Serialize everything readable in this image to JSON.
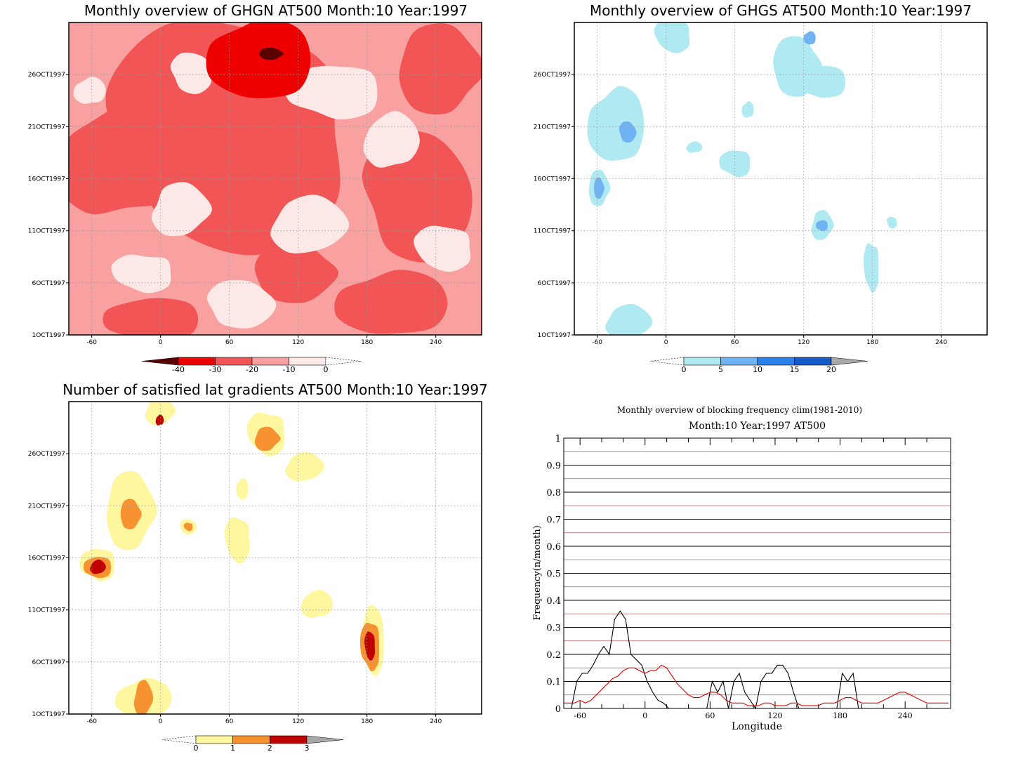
{
  "chart_data": [
    {
      "type": "heatmap",
      "title": "Monthly overview of GHGN AT500 Month:10 Year:1997",
      "x_ticks": [
        -60,
        0,
        60,
        120,
        180,
        240
      ],
      "y_ticks": [
        "1OCT1997",
        "6OCT1997",
        "11OCT1997",
        "16OCT1997",
        "21OCT1997",
        "26OCT1997"
      ],
      "xlim": [
        -80,
        280
      ],
      "ylim_days": [
        1,
        31
      ],
      "colorbar": {
        "ticks": [
          "-40",
          "-30",
          "-20",
          "-10",
          "0"
        ],
        "colors": [
          "#5a0000",
          "#ee0000",
          "#f25555",
          "#f9a0a0",
          "#fde8e8"
        ]
      }
    },
    {
      "type": "heatmap",
      "title": "Monthly overview of GHGS AT500 Month:10 Year:1997",
      "x_ticks": [
        -60,
        0,
        60,
        120,
        180,
        240
      ],
      "y_ticks": [
        "1OCT1997",
        "6OCT1997",
        "11OCT1997",
        "16OCT1997",
        "21OCT1997",
        "26OCT1997"
      ],
      "xlim": [
        -80,
        280
      ],
      "ylim_days": [
        1,
        31
      ],
      "colorbar": {
        "ticks": [
          "0",
          "5",
          "10",
          "15",
          "20"
        ],
        "colors": [
          "#afeaf3",
          "#6fb3f3",
          "#2a82ea",
          "#1659c8",
          "#a8a8a8"
        ]
      }
    },
    {
      "type": "heatmap",
      "title": "Number of satisfied lat gradients AT500 Month:10 Year:1997",
      "x_ticks": [
        -60,
        0,
        60,
        120,
        180,
        240
      ],
      "y_ticks": [
        "1OCT1997",
        "6OCT1997",
        "11OCT1997",
        "16OCT1997",
        "21OCT1997",
        "26OCT1997"
      ],
      "xlim": [
        -80,
        280
      ],
      "ylim_days": [
        1,
        31
      ],
      "colorbar": {
        "ticks": [
          "0",
          "1",
          "2",
          "3"
        ],
        "colors": [
          "#fff6a0",
          "#f79230",
          "#c00000",
          "#a8a8a8"
        ]
      }
    },
    {
      "type": "line",
      "title": "Monthly overview of blocking frequency clim(1981-2010)",
      "subtitle": "Month:10 Year:1997   AT500",
      "xlabel": "Longitude",
      "ylabel": "Frequency(n/month)",
      "xlim": [
        -75,
        282
      ],
      "ylim": [
        0,
        1
      ],
      "x_ticks": [
        -60,
        0,
        60,
        120,
        180,
        240
      ],
      "y_ticks": [
        "0",
        "0.1",
        "0.2",
        "0.3",
        "0.4",
        "0.5",
        "0.6",
        "0.7",
        "0.8",
        "0.9",
        "1"
      ],
      "series": [
        {
          "color": "#000000",
          "x": [
            -73,
            -68,
            -63,
            -58,
            -53,
            -48,
            -43,
            -38,
            -33,
            -28,
            -23,
            -18,
            -13,
            -8,
            -3,
            2,
            7,
            12,
            17,
            22,
            27,
            32,
            37,
            42,
            47,
            52,
            57,
            62,
            67,
            72,
            77,
            82,
            87,
            92,
            97,
            102,
            107,
            112,
            117,
            122,
            127,
            132,
            137,
            142,
            147,
            152,
            157,
            162,
            167,
            172,
            177,
            182,
            187,
            192,
            197,
            202,
            207,
            212
          ],
          "y": [
            0,
            0,
            0.1,
            0.13,
            0.13,
            0.16,
            0.2,
            0.23,
            0.2,
            0.33,
            0.36,
            0.33,
            0.2,
            0.18,
            0.16,
            0.1,
            0.06,
            0.03,
            0.02,
            0,
            0,
            0,
            0,
            0,
            0,
            0,
            0,
            0.1,
            0.06,
            0.1,
            0,
            0.1,
            0.13,
            0.06,
            0.03,
            0,
            0.1,
            0.13,
            0.13,
            0.16,
            0.16,
            0.13,
            0.06,
            0,
            0,
            0,
            0,
            0,
            0,
            0,
            0,
            0.13,
            0.1,
            0.13,
            0,
            0,
            0,
            0
          ]
        },
        {
          "color": "#dd0000",
          "x": [
            -75,
            -70,
            -65,
            -60,
            -55,
            -50,
            -45,
            -40,
            -35,
            -30,
            -25,
            -20,
            -15,
            -10,
            -5,
            0,
            5,
            10,
            15,
            20,
            25,
            30,
            35,
            40,
            45,
            50,
            55,
            60,
            65,
            70,
            75,
            80,
            85,
            90,
            95,
            100,
            105,
            110,
            115,
            120,
            125,
            130,
            135,
            140,
            145,
            150,
            155,
            160,
            165,
            170,
            175,
            180,
            185,
            190,
            195,
            200,
            205,
            210,
            215,
            220,
            225,
            230,
            235,
            240,
            245,
            250,
            255,
            260,
            265,
            270,
            275,
            280
          ],
          "y": [
            0.02,
            0.02,
            0.02,
            0.03,
            0.02,
            0.03,
            0.05,
            0.07,
            0.09,
            0.11,
            0.12,
            0.14,
            0.15,
            0.15,
            0.14,
            0.13,
            0.14,
            0.14,
            0.16,
            0.15,
            0.12,
            0.09,
            0.07,
            0.05,
            0.04,
            0.04,
            0.05,
            0.06,
            0.06,
            0.05,
            0.03,
            0.02,
            0.02,
            0.02,
            0.01,
            0.01,
            0.01,
            0.02,
            0.02,
            0.01,
            0.01,
            0.01,
            0.02,
            0.02,
            0.01,
            0.01,
            0.01,
            0.01,
            0.02,
            0.02,
            0.02,
            0.03,
            0.04,
            0.04,
            0.03,
            0.02,
            0.02,
            0.02,
            0.02,
            0.03,
            0.04,
            0.05,
            0.06,
            0.06,
            0.05,
            0.04,
            0.03,
            0.02,
            0.02,
            0.02,
            0.02,
            0.02
          ]
        }
      ]
    }
  ]
}
